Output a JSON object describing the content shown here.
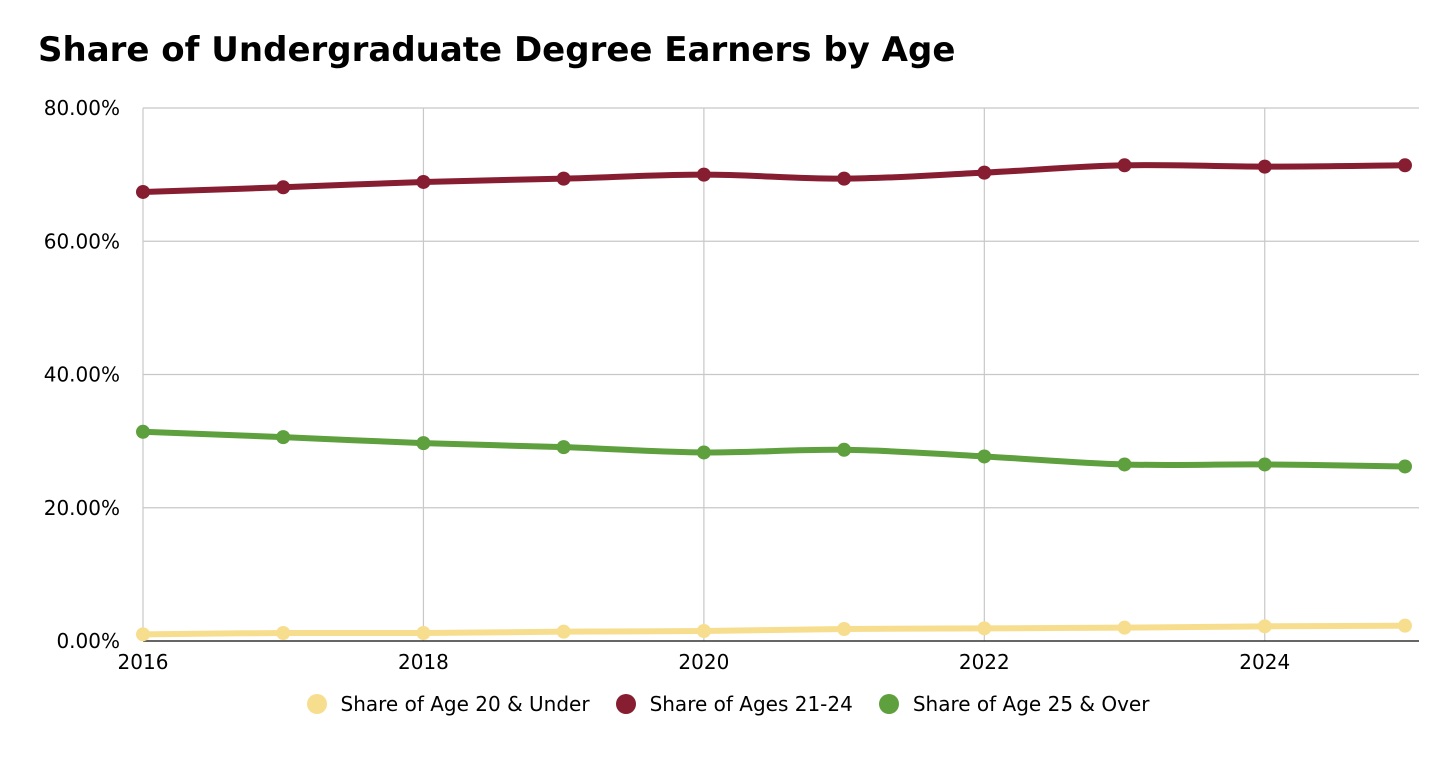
{
  "chart_data": {
    "type": "line",
    "title": "Share of Undergraduate Degree Earners by Age",
    "xlabel": "",
    "ylabel": "",
    "x": [
      2016,
      2017,
      2018,
      2019,
      2020,
      2021,
      2022,
      2023,
      2024,
      2025
    ],
    "x_ticks": [
      "2016",
      "2018",
      "2020",
      "2022",
      "2024"
    ],
    "x_tick_values": [
      2016,
      2018,
      2020,
      2022,
      2024
    ],
    "xlim": [
      2016,
      2025.1
    ],
    "ylim": [
      0,
      80
    ],
    "y_ticks": [
      "0.00%",
      "20.00%",
      "40.00%",
      "60.00%",
      "80.00%"
    ],
    "y_tick_values": [
      0,
      20,
      40,
      60,
      80
    ],
    "grid": true,
    "legend_position": "bottom-center",
    "series": [
      {
        "name": "Share of Age 20 & Under",
        "color": "#f7de8f",
        "values": [
          1.0,
          1.2,
          1.2,
          1.4,
          1.5,
          1.8,
          1.9,
          2.0,
          2.2,
          2.3
        ]
      },
      {
        "name": "Share of Ages 21-24",
        "color": "#861d31",
        "values": [
          67.4,
          68.1,
          68.9,
          69.4,
          70.0,
          69.4,
          70.3,
          71.4,
          71.2,
          71.4
        ]
      },
      {
        "name": "Share of Age 25 & Over",
        "color": "#5e9f3e",
        "values": [
          31.4,
          30.6,
          29.7,
          29.1,
          28.3,
          28.7,
          27.7,
          26.5,
          26.5,
          26.2
        ]
      }
    ]
  }
}
